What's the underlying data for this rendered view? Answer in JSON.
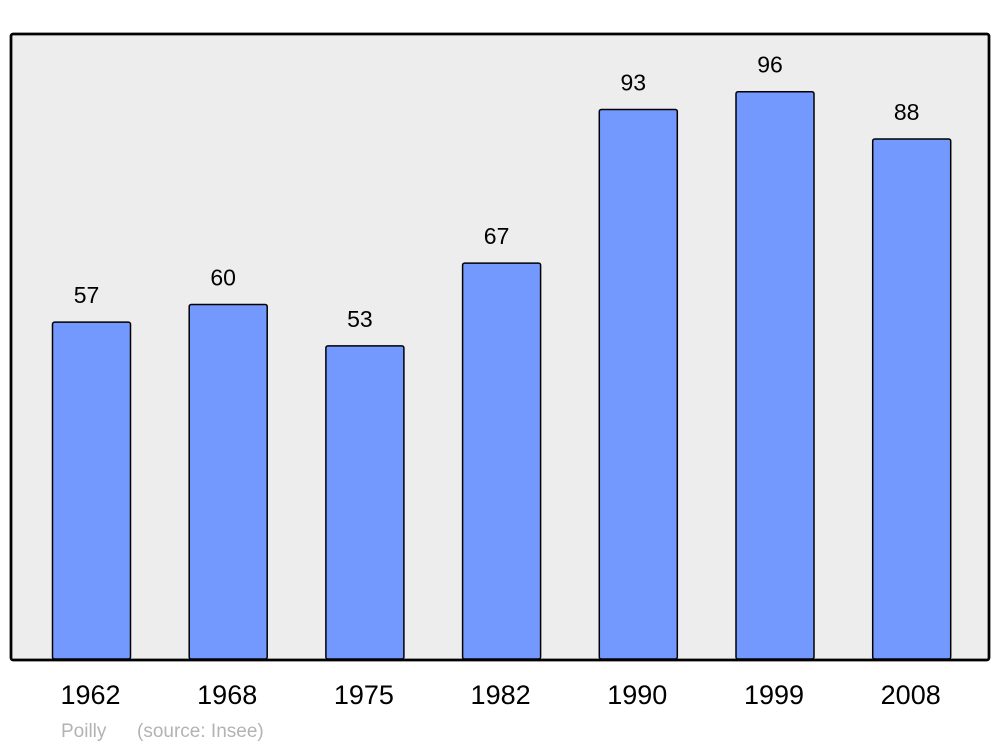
{
  "chart_data": {
    "type": "bar",
    "title": "",
    "xlabel": "",
    "ylabel": "",
    "categories": [
      "1962",
      "1968",
      "1975",
      "1982",
      "1990",
      "1999",
      "2008"
    ],
    "values": [
      57,
      60,
      53,
      67,
      93,
      96,
      88
    ],
    "data_labels": [
      "57",
      "60",
      "53",
      "67",
      "93",
      "96",
      "88"
    ],
    "ylim": [
      0,
      105.6
    ],
    "grid": false,
    "legend": "none",
    "colors": {
      "bar": "#7399ff",
      "plot_background": "#ededed",
      "border": "#000000",
      "footer_text": "#b3b3b3"
    }
  },
  "footer": {
    "place": "Poilly",
    "source": "(source: Insee)"
  }
}
